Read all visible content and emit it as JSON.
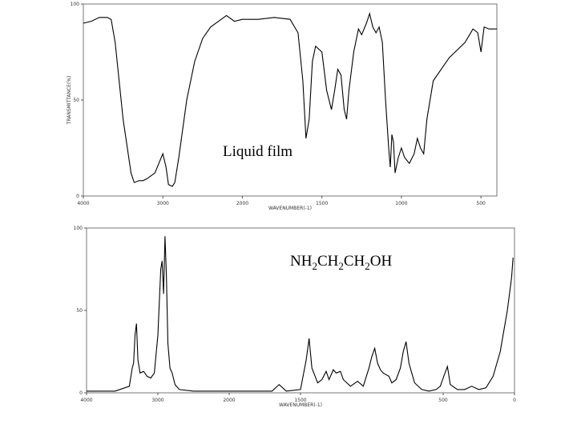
{
  "chart_data": [
    {
      "type": "line",
      "annotation": "Liquid film",
      "ylabel": "TRANSMITTANCE(%)",
      "xlabel": "WAVENUMBER(-1)",
      "xlim": [
        4000,
        400
      ],
      "xbreak": 2000,
      "xticks": [
        4000,
        3000,
        2000,
        1500,
        1000,
        500
      ],
      "ylim": [
        0,
        100
      ],
      "yticks": [
        0,
        50,
        100
      ],
      "series": [
        {
          "color": "#000000",
          "x": [
            4000,
            3900,
            3800,
            3700,
            3650,
            3600,
            3500,
            3400,
            3360,
            3300,
            3250,
            3200,
            3100,
            3000,
            2960,
            2930,
            2880,
            2850,
            2800,
            2700,
            2600,
            2500,
            2400,
            2300,
            2200,
            2100,
            2000,
            1900,
            1800,
            1700,
            1650,
            1620,
            1600,
            1580,
            1560,
            1540,
            1500,
            1470,
            1440,
            1420,
            1400,
            1380,
            1360,
            1345,
            1330,
            1300,
            1270,
            1250,
            1220,
            1200,
            1180,
            1160,
            1140,
            1120,
            1100,
            1080,
            1070,
            1060,
            1050,
            1040,
            1020,
            1000,
            980,
            950,
            920,
            900,
            880,
            860,
            840,
            800,
            700,
            600,
            550,
            520,
            500,
            480,
            450,
            400
          ],
          "values": [
            90,
            91,
            93,
            93,
            92,
            80,
            40,
            12,
            7,
            8,
            8,
            9,
            12,
            22,
            15,
            6,
            5,
            7,
            20,
            50,
            70,
            82,
            88,
            91,
            94,
            91,
            92,
            92,
            93,
            92,
            85,
            60,
            30,
            40,
            70,
            78,
            75,
            55,
            45,
            55,
            66,
            63,
            45,
            40,
            55,
            75,
            87,
            84,
            90,
            95,
            88,
            85,
            88,
            80,
            50,
            25,
            15,
            32,
            28,
            12,
            20,
            25,
            20,
            17,
            22,
            30,
            25,
            22,
            40,
            60,
            72,
            80,
            87,
            85,
            75,
            88,
            87,
            87
          ]
        }
      ]
    },
    {
      "type": "line",
      "annotation": "NH2CH2CH2OH",
      "xlabel": "WAVENUMBER(-1)",
      "xlim": [
        4000,
        0
      ],
      "xbreak": 2000,
      "xticks": [
        4000,
        3000,
        2000,
        1500,
        500,
        0
      ],
      "ylim": [
        0,
        100
      ],
      "yticks": [
        0,
        50,
        100
      ],
      "series": [
        {
          "color": "#000000",
          "x": [
            4000,
            3600,
            3400,
            3360,
            3340,
            3320,
            3300,
            3280,
            3250,
            3200,
            3150,
            3100,
            3050,
            3000,
            2960,
            2940,
            2920,
            2900,
            2880,
            2860,
            2830,
            2800,
            2760,
            2700,
            2500,
            2000,
            1700,
            1650,
            1600,
            1500,
            1460,
            1440,
            1420,
            1380,
            1350,
            1320,
            1300,
            1270,
            1250,
            1220,
            1200,
            1150,
            1100,
            1060,
            1020,
            1000,
            980,
            960,
            940,
            920,
            880,
            860,
            830,
            800,
            780,
            760,
            740,
            720,
            700,
            650,
            600,
            550,
            520,
            500,
            470,
            450,
            400,
            350,
            300,
            250,
            200,
            150,
            100,
            50,
            20,
            10
          ],
          "values": [
            1,
            1,
            4,
            15,
            18,
            35,
            42,
            20,
            12,
            13,
            10,
            9,
            12,
            35,
            75,
            80,
            60,
            95,
            70,
            30,
            15,
            12,
            5,
            2,
            1,
            1,
            1,
            5,
            1,
            2,
            20,
            33,
            15,
            6,
            8,
            13,
            8,
            14,
            12,
            13,
            8,
            4,
            7,
            4,
            15,
            22,
            27,
            18,
            14,
            12,
            10,
            6,
            8,
            15,
            25,
            31,
            18,
            12,
            6,
            2,
            1,
            2,
            4,
            9,
            16,
            5,
            2,
            2,
            4,
            2,
            3,
            10,
            25,
            50,
            70,
            82
          ]
        }
      ]
    }
  ]
}
